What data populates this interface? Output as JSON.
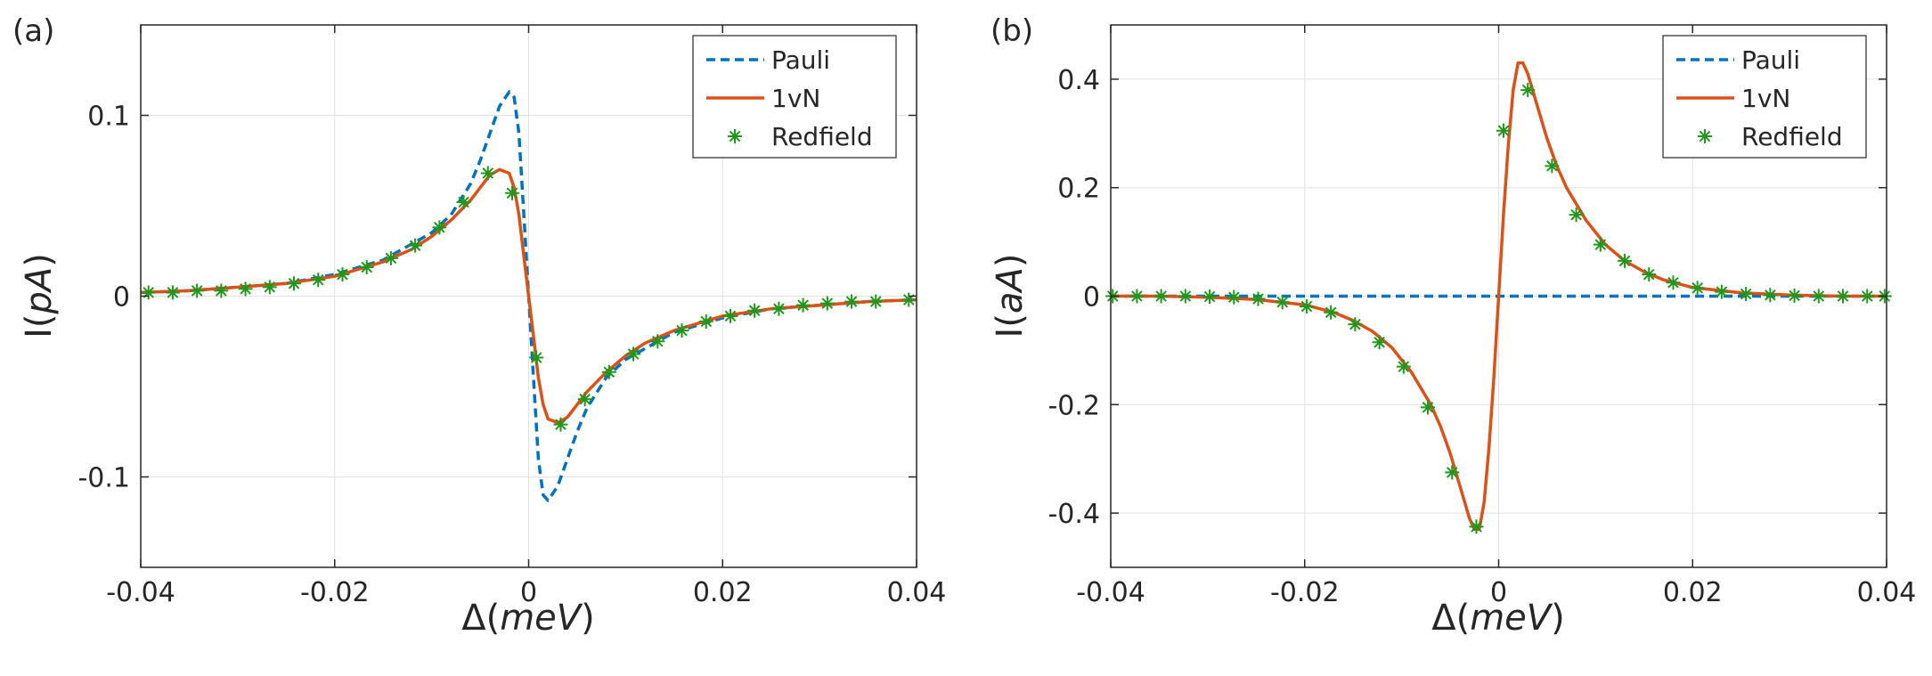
{
  "chart_data": [
    {
      "panel_label": "(a)",
      "type": "line",
      "xlabel": "Δ(meV)",
      "ylabel": "I(pA)",
      "xlabel_prefix": "Δ",
      "xlabel_unit": "meV",
      "ylabel_prefix": "I",
      "ylabel_unit": "pA",
      "xlim": [
        -0.04,
        0.04
      ],
      "ylim": [
        -0.15,
        0.15
      ],
      "xticks": [
        -0.04,
        -0.02,
        0,
        0.02,
        0.04
      ],
      "xtick_labels": [
        "-0.04",
        "-0.02",
        "0",
        "0.02",
        "0.04"
      ],
      "yticks": [
        -0.1,
        0,
        0.1
      ],
      "ytick_labels": [
        "-0.1",
        "0",
        "0.1"
      ],
      "grid": true,
      "legend": "top-right",
      "series": [
        {
          "name": "Pauli",
          "style": "dashed",
          "color": "#0072BD",
          "x": [
            -0.04,
            -0.035,
            -0.03,
            -0.025,
            -0.02,
            -0.015,
            -0.01,
            -0.008,
            -0.006,
            -0.005,
            -0.004,
            -0.003,
            -0.002,
            -0.0015,
            -0.001,
            -0.0005,
            0,
            0.0005,
            0.001,
            0.0015,
            0.002,
            0.003,
            0.004,
            0.005,
            0.006,
            0.008,
            0.01,
            0.015,
            0.02,
            0.025,
            0.03,
            0.035,
            0.04
          ],
          "y": [
            0.002,
            0.003,
            0.005,
            0.007,
            0.012,
            0.02,
            0.035,
            0.045,
            0.062,
            0.075,
            0.09,
            0.105,
            0.113,
            0.11,
            0.09,
            0.045,
            0,
            -0.045,
            -0.09,
            -0.11,
            -0.113,
            -0.105,
            -0.09,
            -0.075,
            -0.062,
            -0.045,
            -0.035,
            -0.02,
            -0.012,
            -0.007,
            -0.005,
            -0.003,
            -0.002
          ]
        },
        {
          "name": "1vN",
          "style": "solid",
          "color": "#D95319",
          "x": [
            -0.04,
            -0.035,
            -0.03,
            -0.025,
            -0.02,
            -0.015,
            -0.012,
            -0.01,
            -0.008,
            -0.006,
            -0.005,
            -0.004,
            -0.003,
            -0.002,
            -0.0015,
            -0.001,
            -0.0005,
            0,
            0.0005,
            0.001,
            0.0015,
            0.002,
            0.003,
            0.004,
            0.005,
            0.006,
            0.008,
            0.01,
            0.012,
            0.015,
            0.02,
            0.025,
            0.03,
            0.035,
            0.04
          ],
          "y": [
            0.002,
            0.003,
            0.005,
            0.007,
            0.011,
            0.019,
            0.026,
            0.033,
            0.042,
            0.053,
            0.06,
            0.067,
            0.07,
            0.068,
            0.06,
            0.045,
            0.022,
            0,
            -0.022,
            -0.045,
            -0.06,
            -0.068,
            -0.07,
            -0.067,
            -0.06,
            -0.053,
            -0.042,
            -0.033,
            -0.026,
            -0.019,
            -0.011,
            -0.007,
            -0.005,
            -0.003,
            -0.002
          ]
        },
        {
          "name": "Redfield",
          "style": "markers",
          "marker": "asterisk",
          "color": "#21961E",
          "x": [
            -0.0392,
            -0.0367,
            -0.0342,
            -0.0317,
            -0.0292,
            -0.0267,
            -0.0242,
            -0.0217,
            -0.0192,
            -0.0167,
            -0.0142,
            -0.0117,
            -0.0092,
            -0.0067,
            -0.0042,
            -0.0017,
            0.0008,
            0.0033,
            0.0058,
            0.0083,
            0.0108,
            0.0133,
            0.0158,
            0.0183,
            0.0208,
            0.0233,
            0.0258,
            0.0283,
            0.0308,
            0.0333,
            0.0358,
            0.0392
          ],
          "y": [
            0.002,
            0.002,
            0.003,
            0.003,
            0.004,
            0.005,
            0.007,
            0.009,
            0.012,
            0.016,
            0.021,
            0.028,
            0.038,
            0.052,
            0.068,
            0.057,
            -0.034,
            -0.071,
            -0.057,
            -0.042,
            -0.032,
            -0.025,
            -0.019,
            -0.014,
            -0.011,
            -0.008,
            -0.007,
            -0.005,
            -0.004,
            -0.003,
            -0.003,
            -0.002
          ]
        }
      ]
    },
    {
      "panel_label": "(b)",
      "type": "line",
      "xlabel": "Δ(meV)",
      "ylabel": "I(aA)",
      "xlabel_prefix": "Δ",
      "xlabel_unit": "meV",
      "ylabel_prefix": "I",
      "ylabel_unit": "aA",
      "xlim": [
        -0.04,
        0.04
      ],
      "ylim": [
        -0.5,
        0.5
      ],
      "xticks": [
        -0.04,
        -0.02,
        0,
        0.02,
        0.04
      ],
      "xtick_labels": [
        "-0.04",
        "-0.02",
        "0",
        "0.02",
        "0.04"
      ],
      "yticks": [
        -0.4,
        -0.2,
        0,
        0.2,
        0.4
      ],
      "ytick_labels": [
        "-0.4",
        "-0.2",
        "0",
        "0.2",
        "0.4"
      ],
      "grid": true,
      "legend": "top-right",
      "series": [
        {
          "name": "Pauli",
          "style": "dashed",
          "color": "#0072BD",
          "x": [
            -0.04,
            0.04
          ],
          "y": [
            0,
            0
          ]
        },
        {
          "name": "1vN",
          "style": "solid",
          "color": "#D95319",
          "x": [
            -0.04,
            -0.035,
            -0.03,
            -0.025,
            -0.02,
            -0.017,
            -0.015,
            -0.013,
            -0.011,
            -0.009,
            -0.007,
            -0.006,
            -0.005,
            -0.004,
            -0.003,
            -0.0025,
            -0.002,
            -0.0015,
            -0.001,
            -0.0005,
            0,
            0.0005,
            0.001,
            0.0015,
            0.002,
            0.0025,
            0.003,
            0.004,
            0.005,
            0.006,
            0.007,
            0.009,
            0.011,
            0.013,
            0.015,
            0.017,
            0.02,
            0.025,
            0.03,
            0.035,
            0.04
          ],
          "y": [
            0,
            0,
            -0.002,
            -0.006,
            -0.016,
            -0.03,
            -0.045,
            -0.065,
            -0.095,
            -0.14,
            -0.2,
            -0.24,
            -0.29,
            -0.35,
            -0.41,
            -0.43,
            -0.43,
            -0.38,
            -0.28,
            -0.15,
            0,
            0.15,
            0.28,
            0.38,
            0.43,
            0.43,
            0.41,
            0.35,
            0.29,
            0.24,
            0.2,
            0.14,
            0.095,
            0.065,
            0.045,
            0.03,
            0.016,
            0.006,
            0.002,
            0,
            0
          ]
        },
        {
          "name": "Redfield",
          "style": "markers",
          "marker": "asterisk",
          "color": "#21961E",
          "x": [
            -0.0398,
            -0.0373,
            -0.0348,
            -0.0323,
            -0.0298,
            -0.0273,
            -0.0248,
            -0.0223,
            -0.0198,
            -0.0173,
            -0.0148,
            -0.0123,
            -0.0098,
            -0.0073,
            -0.0048,
            -0.0023,
            0.0005,
            0.003,
            0.0055,
            0.008,
            0.0105,
            0.013,
            0.0155,
            0.018,
            0.0205,
            0.023,
            0.0255,
            0.028,
            0.0305,
            0.033,
            0.0355,
            0.038,
            0.0398
          ],
          "y": [
            0,
            0,
            0,
            0,
            -0.001,
            -0.002,
            -0.005,
            -0.011,
            -0.019,
            -0.03,
            -0.052,
            -0.085,
            -0.13,
            -0.205,
            -0.325,
            -0.425,
            0.305,
            0.38,
            0.24,
            0.15,
            0.095,
            0.065,
            0.04,
            0.025,
            0.015,
            0.008,
            0.004,
            0.002,
            0.001,
            0,
            0,
            0,
            0
          ]
        }
      ]
    }
  ]
}
